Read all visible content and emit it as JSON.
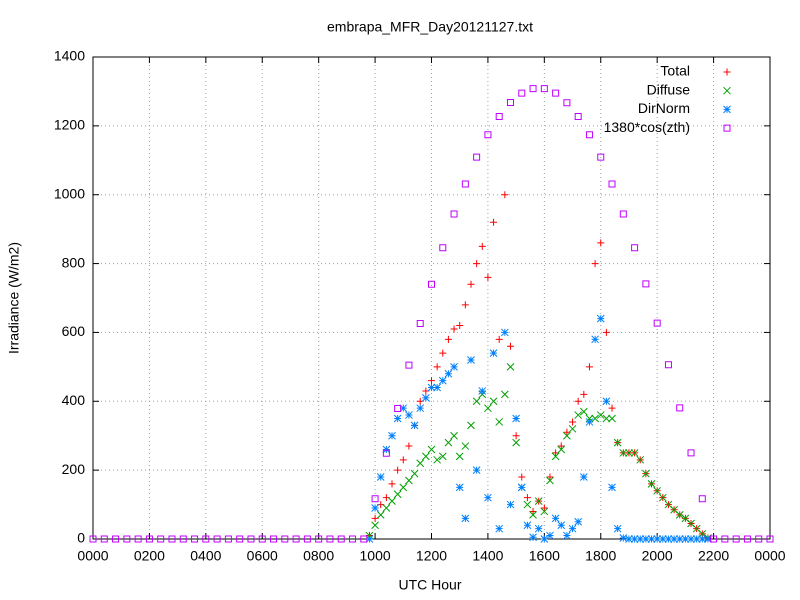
{
  "chart_data": {
    "type": "scatter",
    "title": "embrapa_MFR_Day20121127.txt",
    "x_label": "UTC Hour",
    "y_label": "Irradiance (W/m2)",
    "xlim": [
      0,
      2400
    ],
    "xticks": [
      {
        "value": 0,
        "label": "0000"
      },
      {
        "value": 200,
        "label": "0200"
      },
      {
        "value": 400,
        "label": "0400"
      },
      {
        "value": 600,
        "label": "0600"
      },
      {
        "value": 800,
        "label": "0800"
      },
      1000,
      1200,
      1400,
      1600,
      1800,
      2000,
      2200,
      {
        "value": 2400,
        "label": "0000"
      }
    ],
    "ylim": [
      0,
      1400
    ],
    "yticks": [
      0,
      200,
      400,
      600,
      800,
      1000,
      1200,
      1400
    ],
    "grid": true,
    "legend": "upper right",
    "series": [
      {
        "name": "Total",
        "color": "#ff0000",
        "marker": "plus",
        "x": [
          980,
          1000,
          1020,
          1040,
          1060,
          1080,
          1100,
          1120,
          1140,
          1160,
          1180,
          1200,
          1220,
          1240,
          1260,
          1280,
          1300,
          1320,
          1340,
          1360,
          1380,
          1400,
          1420,
          1440,
          1460,
          1480,
          1500,
          1520,
          1540,
          1560,
          1580,
          1600,
          1620,
          1640,
          1660,
          1680,
          1700,
          1720,
          1740,
          1760,
          1780,
          1800,
          1820,
          1840,
          1860,
          1880,
          1900,
          1920,
          1940,
          1960,
          1980,
          2000,
          2020,
          2040,
          2060,
          2080,
          2100,
          2120,
          2140,
          2160,
          2180
        ],
        "values": [
          10,
          60,
          100,
          120,
          160,
          200,
          230,
          270,
          330,
          400,
          430,
          460,
          500,
          540,
          580,
          610,
          620,
          680,
          740,
          800,
          850,
          760,
          920,
          580,
          1000,
          560,
          300,
          180,
          120,
          80,
          110,
          90,
          180,
          250,
          270,
          310,
          340,
          400,
          420,
          500,
          800,
          860,
          600,
          380,
          280,
          250,
          250,
          250,
          230,
          190,
          160,
          140,
          120,
          100,
          85,
          70,
          60,
          45,
          30,
          15,
          3
        ]
      },
      {
        "name": "Diffuse",
        "color": "#00a000",
        "marker": "cross",
        "x": [
          980,
          1000,
          1020,
          1040,
          1060,
          1080,
          1100,
          1120,
          1140,
          1160,
          1180,
          1200,
          1220,
          1240,
          1260,
          1280,
          1300,
          1320,
          1340,
          1360,
          1380,
          1400,
          1420,
          1440,
          1460,
          1480,
          1500,
          1520,
          1540,
          1560,
          1580,
          1600,
          1620,
          1640,
          1660,
          1680,
          1700,
          1720,
          1740,
          1760,
          1780,
          1800,
          1820,
          1840,
          1860,
          1880,
          1900,
          1920,
          1940,
          1960,
          1980,
          2000,
          2020,
          2040,
          2060,
          2080,
          2100,
          2120,
          2140,
          2160,
          2180
        ],
        "values": [
          10,
          40,
          70,
          90,
          110,
          130,
          150,
          170,
          190,
          220,
          240,
          260,
          230,
          240,
          280,
          300,
          240,
          270,
          330,
          400,
          420,
          380,
          400,
          340,
          420,
          500,
          280,
          150,
          100,
          70,
          110,
          80,
          170,
          240,
          260,
          300,
          320,
          360,
          370,
          350,
          350,
          360,
          350,
          350,
          280,
          250,
          250,
          250,
          230,
          190,
          160,
          140,
          120,
          100,
          85,
          70,
          60,
          45,
          30,
          15,
          3
        ]
      },
      {
        "name": "DirNorm",
        "color": "#0080ff",
        "marker": "star",
        "x": [
          980,
          1000,
          1020,
          1040,
          1060,
          1080,
          1100,
          1120,
          1140,
          1160,
          1180,
          1200,
          1220,
          1240,
          1260,
          1280,
          1300,
          1320,
          1340,
          1360,
          1380,
          1400,
          1420,
          1440,
          1460,
          1480,
          1500,
          1520,
          1540,
          1560,
          1580,
          1600,
          1620,
          1640,
          1660,
          1680,
          1700,
          1720,
          1740,
          1760,
          1780,
          1800,
          1820,
          1840,
          1860,
          1880,
          1900,
          1920,
          1940,
          1960,
          1980,
          2000,
          2020,
          2040,
          2060,
          2080,
          2100,
          2120,
          2140,
          2160,
          2180
        ],
        "values": [
          0,
          90,
          180,
          260,
          300,
          350,
          380,
          360,
          330,
          380,
          410,
          440,
          440,
          460,
          480,
          500,
          150,
          60,
          520,
          200,
          430,
          120,
          540,
          30,
          600,
          100,
          350,
          150,
          40,
          5,
          30,
          0,
          10,
          60,
          40,
          10,
          30,
          50,
          180,
          340,
          580,
          640,
          400,
          150,
          30,
          3,
          0,
          0,
          0,
          0,
          0,
          0,
          0,
          0,
          0,
          0,
          0,
          0,
          0,
          0,
          0
        ]
      },
      {
        "name": "1380*cos(zth)",
        "color": "#c000ff",
        "marker": "square",
        "x": [
          0,
          40,
          80,
          120,
          160,
          200,
          240,
          280,
          320,
          360,
          400,
          440,
          480,
          520,
          560,
          600,
          640,
          680,
          720,
          760,
          800,
          840,
          880,
          920,
          960,
          1000,
          1040,
          1080,
          1120,
          1160,
          1200,
          1240,
          1280,
          1320,
          1360,
          1400,
          1440,
          1480,
          1520,
          1560,
          1600,
          1640,
          1680,
          1720,
          1760,
          1800,
          1840,
          1880,
          1920,
          1960,
          2000,
          2040,
          2080,
          2120,
          2160,
          2200,
          2240,
          2280,
          2320,
          2360,
          2400
        ],
        "values": [
          0,
          0,
          0,
          0,
          0,
          0,
          0,
          0,
          0,
          0,
          0,
          0,
          0,
          0,
          0,
          0,
          0,
          0,
          0,
          0,
          0,
          0,
          0,
          0,
          0,
          117,
          249,
          379,
          505,
          626,
          740,
          846,
          944,
          1031,
          1109,
          1174,
          1227,
          1268,
          1295,
          1308,
          1308,
          1295,
          1267,
          1227,
          1174,
          1109,
          1031,
          944,
          846,
          741,
          627,
          506,
          381,
          250,
          117,
          0,
          0,
          0,
          0,
          0,
          0
        ]
      }
    ]
  }
}
